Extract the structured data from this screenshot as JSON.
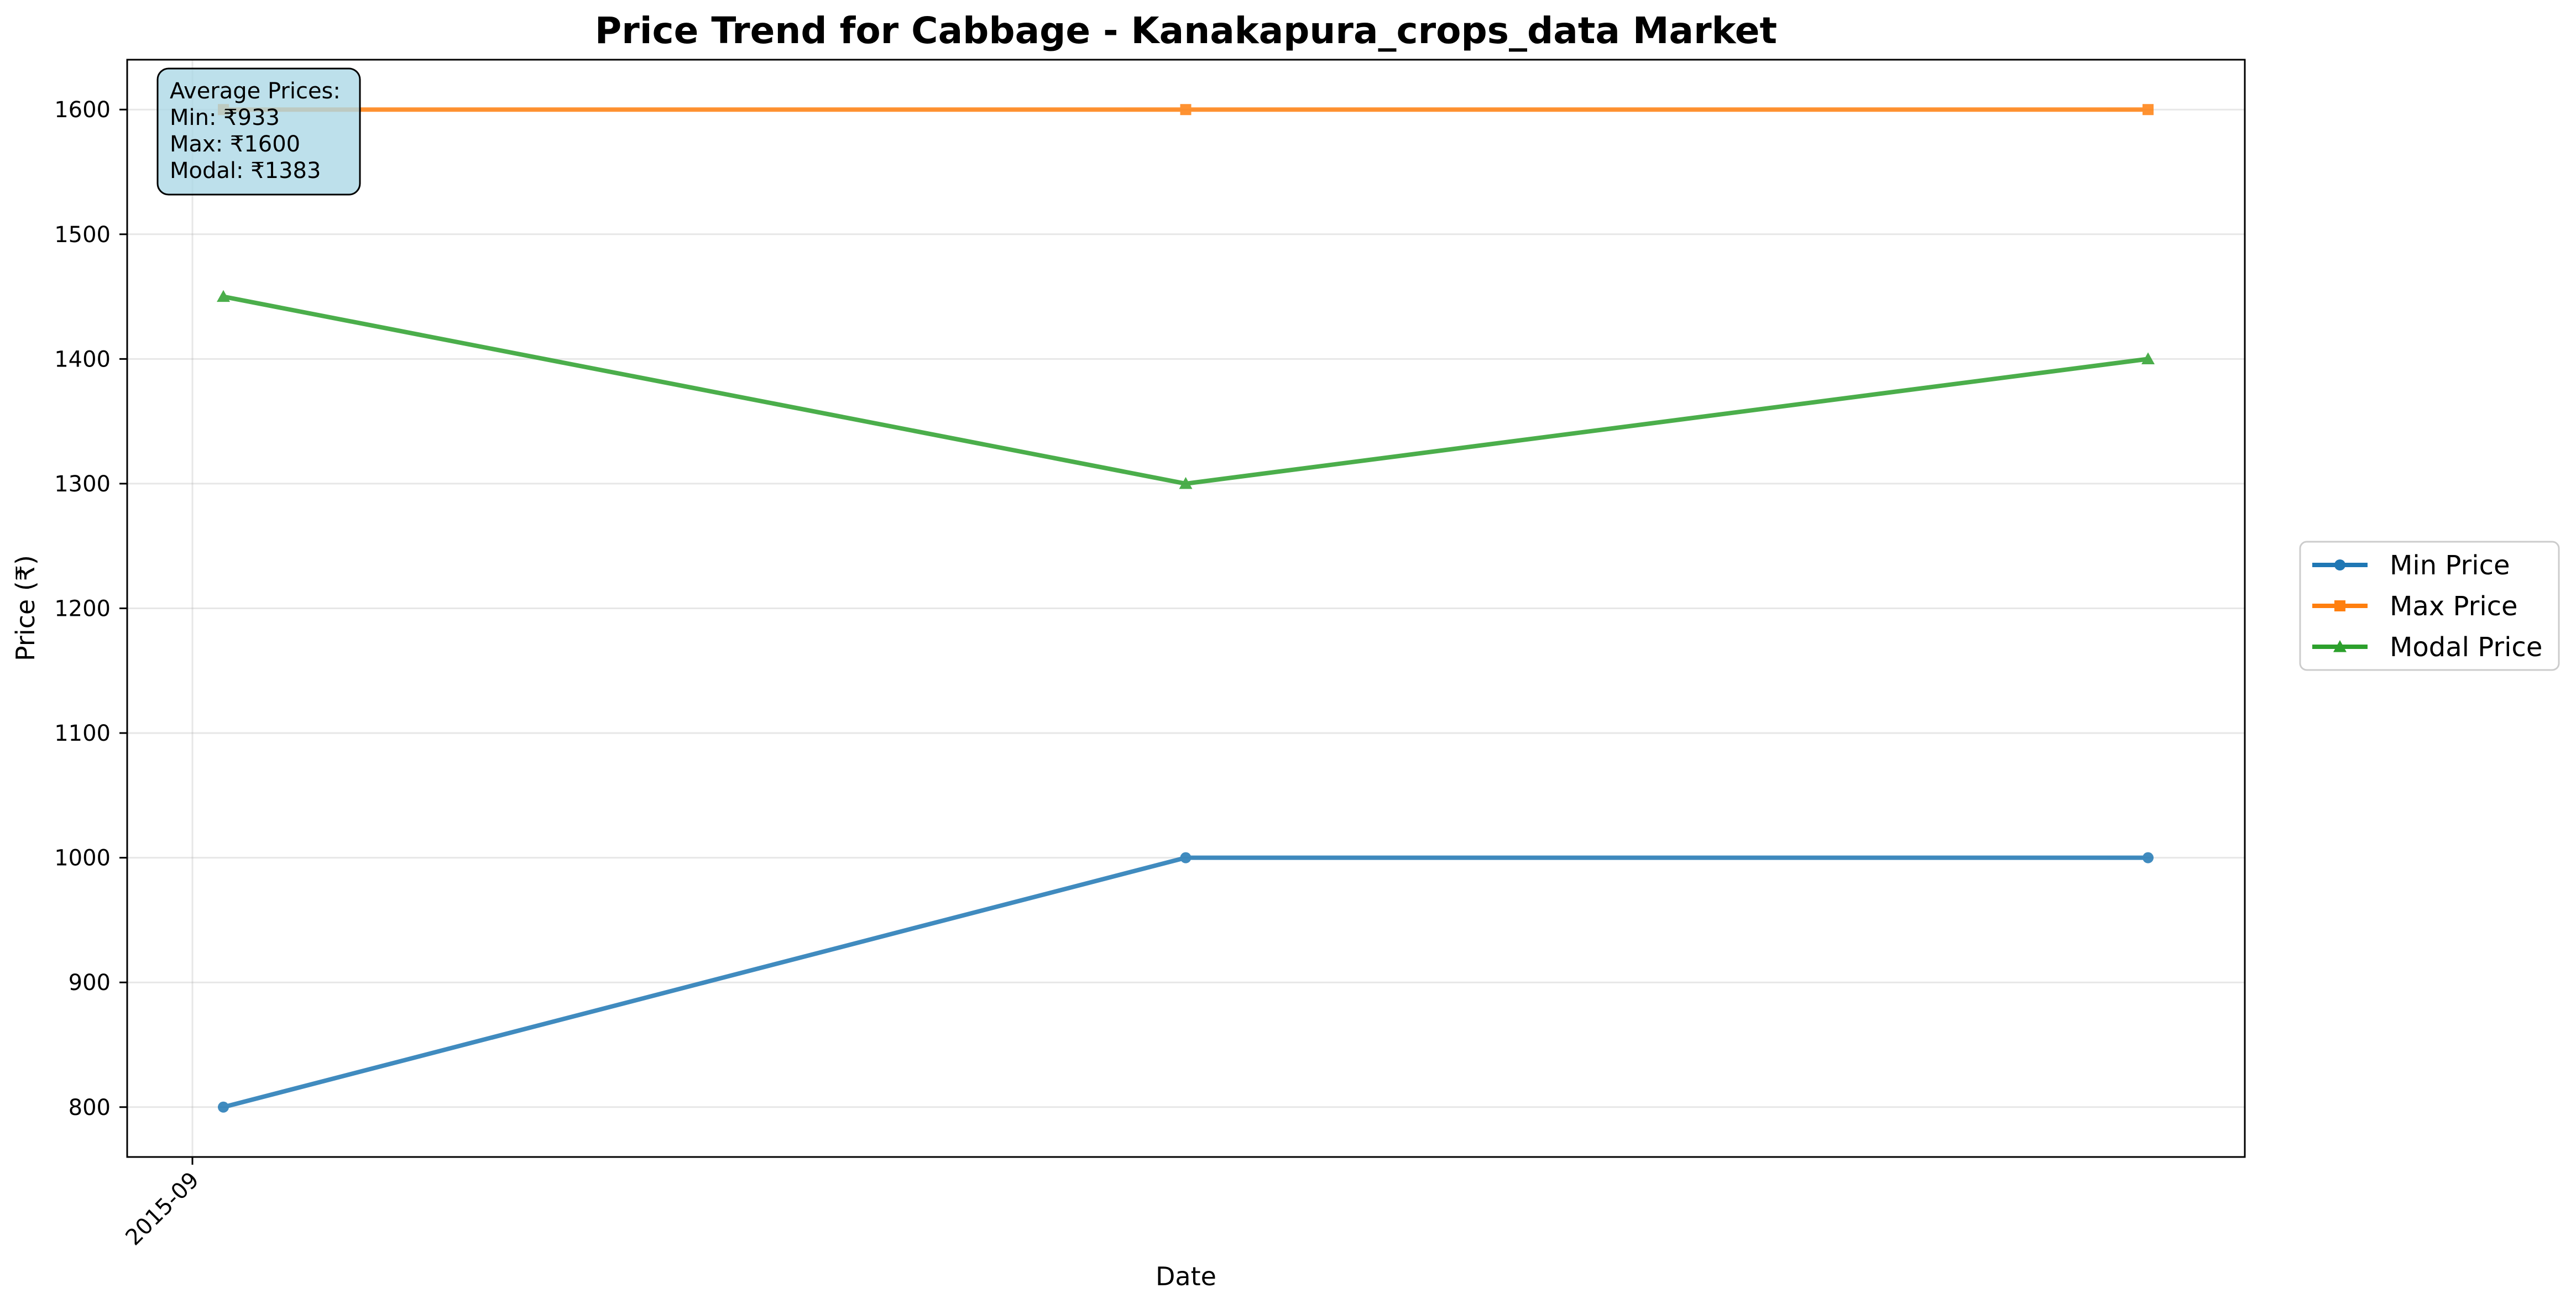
{
  "chart_data": {
    "type": "line",
    "title": "Price Trend for Cabbage - Kanakapura_crops_data Market",
    "xlabel": "Date",
    "ylabel": "Price (₹)",
    "x_tick_labels": [
      "2015-09"
    ],
    "y_ticks": [
      800,
      900,
      1000,
      1100,
      1200,
      1300,
      1400,
      1500,
      1600
    ],
    "ylim": [
      760,
      1640
    ],
    "grid": true,
    "legend_position": "outside right",
    "series": [
      {
        "name": "Min Price",
        "color": "#1f77b4",
        "marker": "circle",
        "values": [
          800,
          1000,
          1000
        ]
      },
      {
        "name": "Max Price",
        "color": "#ff7f0e",
        "marker": "square",
        "values": [
          1600,
          1600,
          1600
        ]
      },
      {
        "name": "Modal Price",
        "color": "#2ca02c",
        "marker": "triangle",
        "values": [
          1450,
          1300,
          1400
        ]
      }
    ],
    "annotation": {
      "lines": [
        "Average Prices:",
        "Min: ₹933",
        "Max: ₹1600",
        "Modal: ₹1383"
      ],
      "background": "#add8e6"
    }
  }
}
